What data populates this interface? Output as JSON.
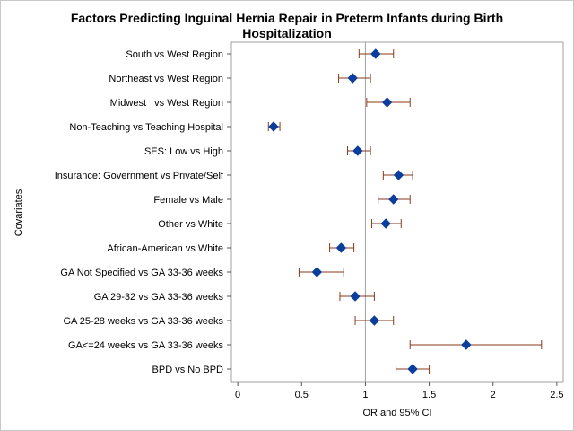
{
  "chart_data": {
    "type": "forest",
    "title_line1": "Factors Predicting Inguinal Hernia Repair in Preterm Infants during Birth",
    "title_line2": "Hospitalization",
    "xlabel": "OR and 95% CI",
    "ylabel": "Covariates",
    "xlim": [
      -0.05,
      2.55
    ],
    "xticks": [
      0,
      0.5,
      1,
      1.5,
      2,
      2.5
    ],
    "xtick_labels": [
      "0",
      "0.5",
      "1",
      "1.5",
      "2",
      "2.5"
    ],
    "reference_line": 1,
    "marker_color": "#0b3e9c",
    "ci_color": "#8b3a1a",
    "rows": [
      {
        "label": "South vs West Region",
        "or": 1.08,
        "lower": 0.95,
        "upper": 1.22
      },
      {
        "label": "Northeast vs West Region",
        "or": 0.9,
        "lower": 0.79,
        "upper": 1.04
      },
      {
        "label": "Midwest   vs West Region",
        "or": 1.17,
        "lower": 1.01,
        "upper": 1.35
      },
      {
        "label": "Non-Teaching vs Teaching Hospital",
        "or": 0.28,
        "lower": 0.24,
        "upper": 0.33
      },
      {
        "label": "SES: Low vs High",
        "or": 0.94,
        "lower": 0.86,
        "upper": 1.04
      },
      {
        "label": "Insurance: Government vs Private/Self",
        "or": 1.26,
        "lower": 1.14,
        "upper": 1.37
      },
      {
        "label": "Female vs Male",
        "or": 1.22,
        "lower": 1.1,
        "upper": 1.35
      },
      {
        "label": "Other vs White",
        "or": 1.16,
        "lower": 1.05,
        "upper": 1.28
      },
      {
        "label": "African-American vs White",
        "or": 0.81,
        "lower": 0.72,
        "upper": 0.91
      },
      {
        "label": "GA Not Specified vs GA 33-36 weeks",
        "or": 0.62,
        "lower": 0.48,
        "upper": 0.83
      },
      {
        "label": "GA 29-32 vs GA 33-36 weeks",
        "or": 0.92,
        "lower": 0.8,
        "upper": 1.07
      },
      {
        "label": "GA 25-28 weeks vs GA 33-36 weeks",
        "or": 1.07,
        "lower": 0.92,
        "upper": 1.22
      },
      {
        "label": "GA<=24 weeks vs GA 33-36 weeks",
        "or": 1.79,
        "lower": 1.35,
        "upper": 2.38
      },
      {
        "label": "BPD vs No BPD",
        "or": 1.37,
        "lower": 1.24,
        "upper": 1.5
      }
    ]
  }
}
